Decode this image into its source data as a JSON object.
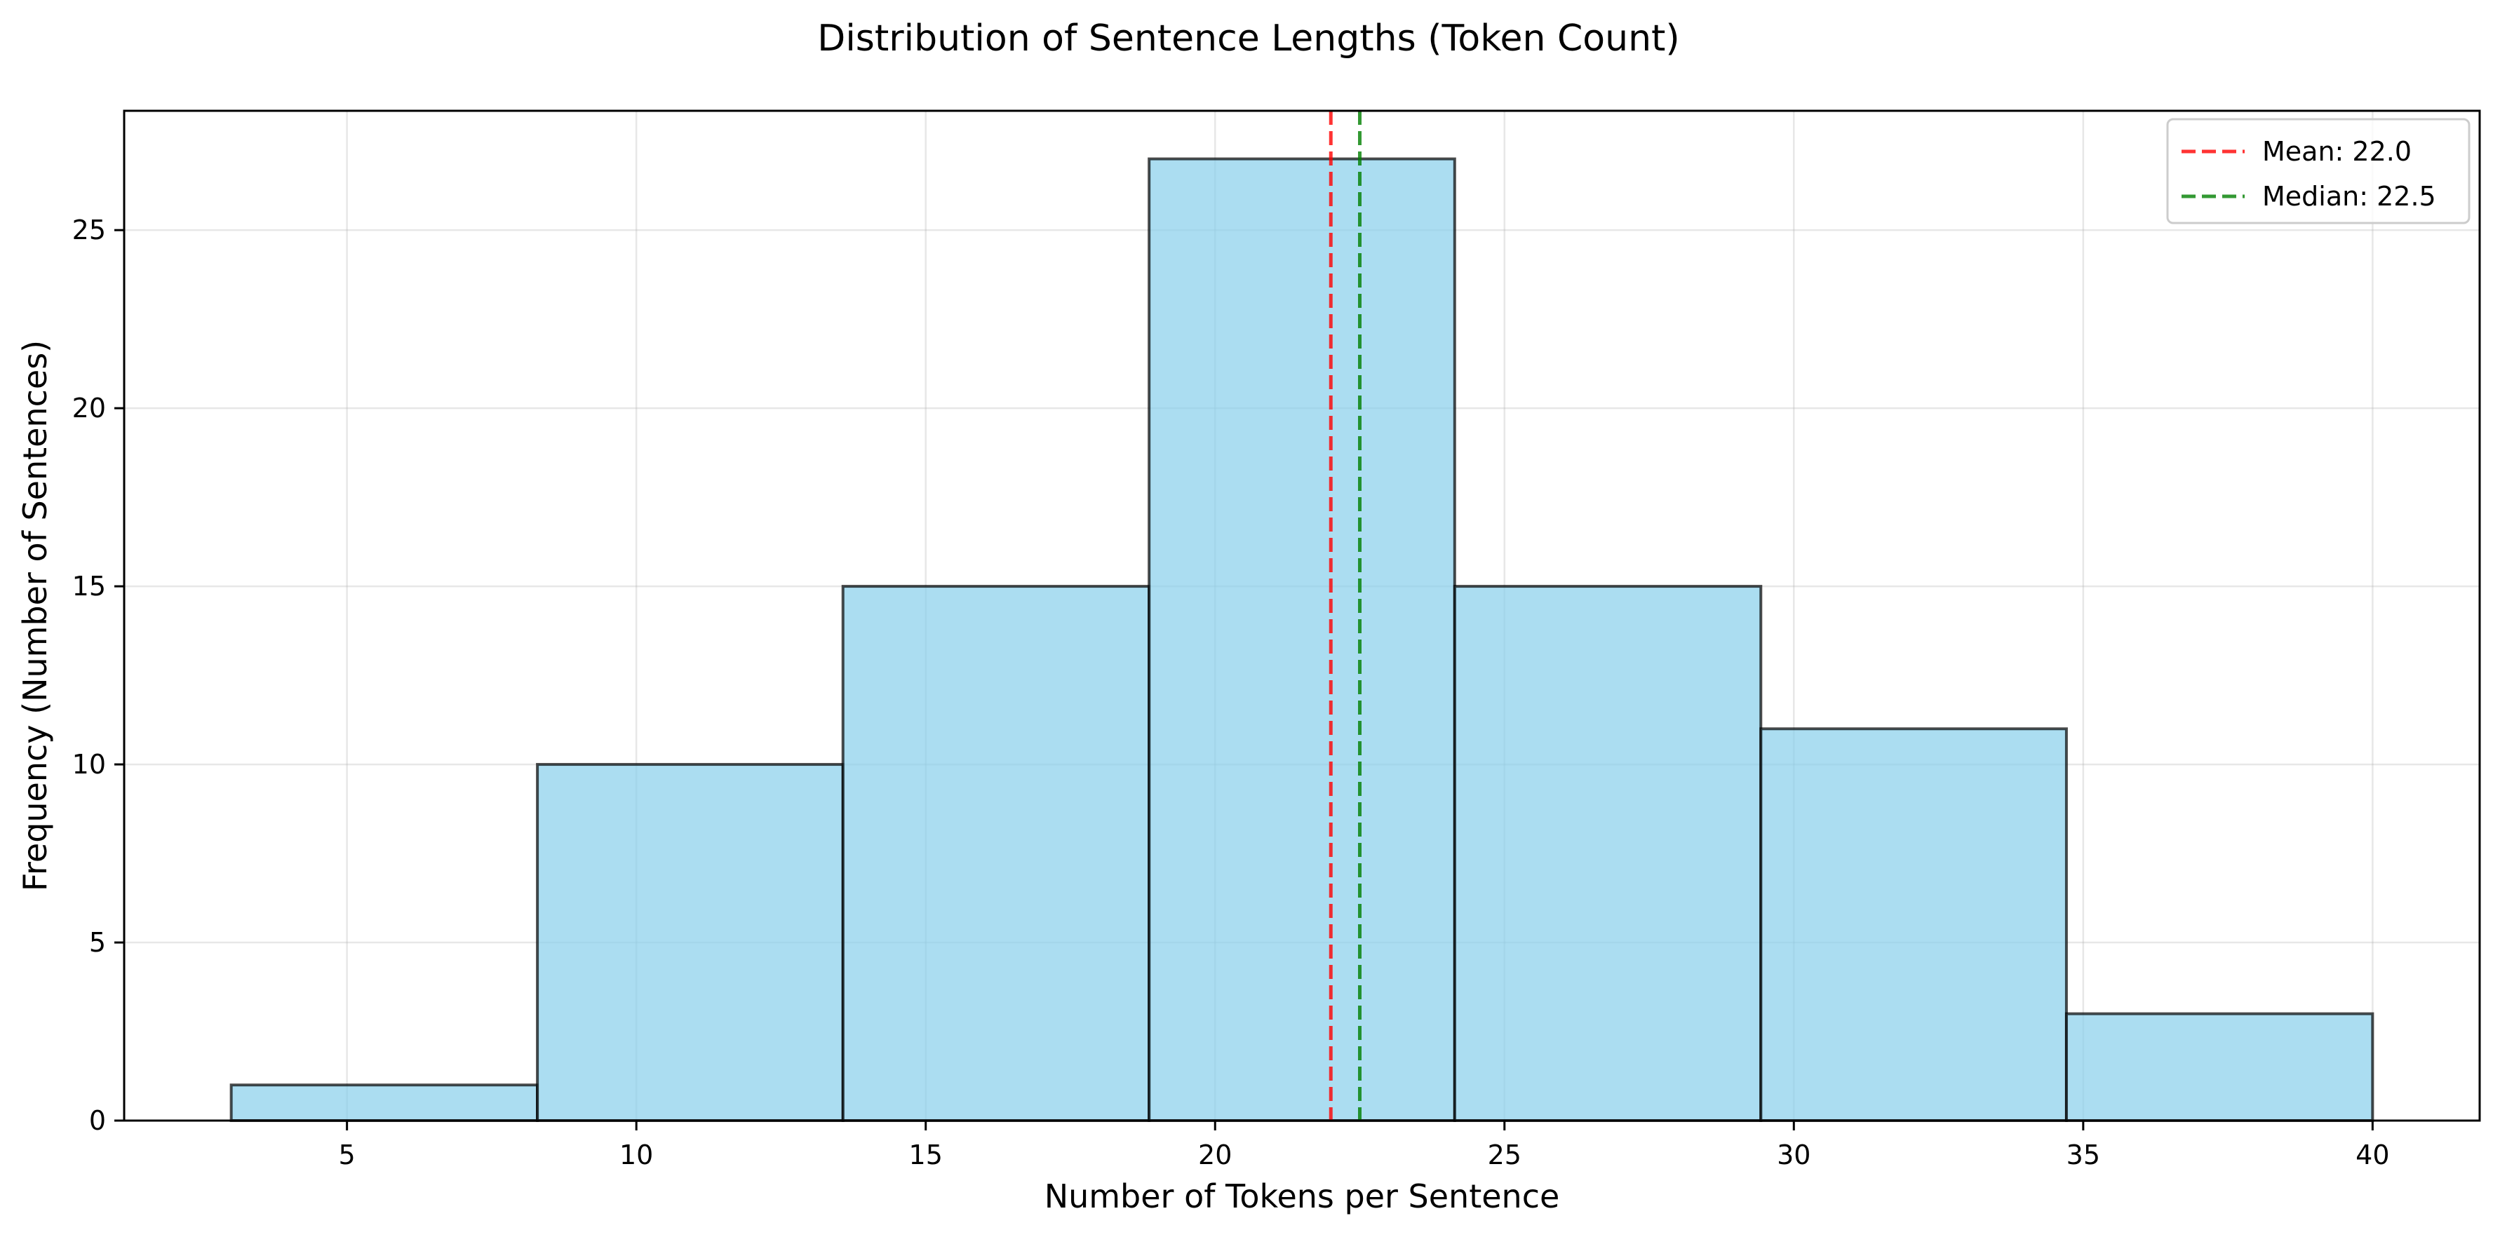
{
  "chart_data": {
    "type": "bar",
    "title": "Distribution of Sentence Lengths (Token Count)",
    "xlabel": "Number of Tokens per Sentence",
    "ylabel": "Frequency (Number of Sentences)",
    "xlim": [
      1.15,
      41.85
    ],
    "ylim": [
      0,
      28.35
    ],
    "grid": true,
    "bins": [
      {
        "start": 3.0,
        "end": 8.29,
        "count": 1
      },
      {
        "start": 8.29,
        "end": 13.57,
        "count": 10
      },
      {
        "start": 13.57,
        "end": 18.86,
        "count": 15
      },
      {
        "start": 18.86,
        "end": 24.14,
        "count": 27
      },
      {
        "start": 24.14,
        "end": 29.43,
        "count": 15
      },
      {
        "start": 29.43,
        "end": 34.71,
        "count": 11
      },
      {
        "start": 34.71,
        "end": 40.0,
        "count": 3
      }
    ],
    "bar_color": "#87ceeb",
    "x_ticks": [
      5,
      10,
      15,
      20,
      25,
      30,
      35,
      40
    ],
    "y_ticks": [
      0,
      5,
      10,
      15,
      20,
      25
    ],
    "reference_lines": [
      {
        "label": "Mean: 22.0",
        "value": 22.0,
        "color": "#ff0000"
      },
      {
        "label": "Median: 22.5",
        "value": 22.5,
        "color": "#008000"
      }
    ],
    "legend_position": "top-right"
  }
}
